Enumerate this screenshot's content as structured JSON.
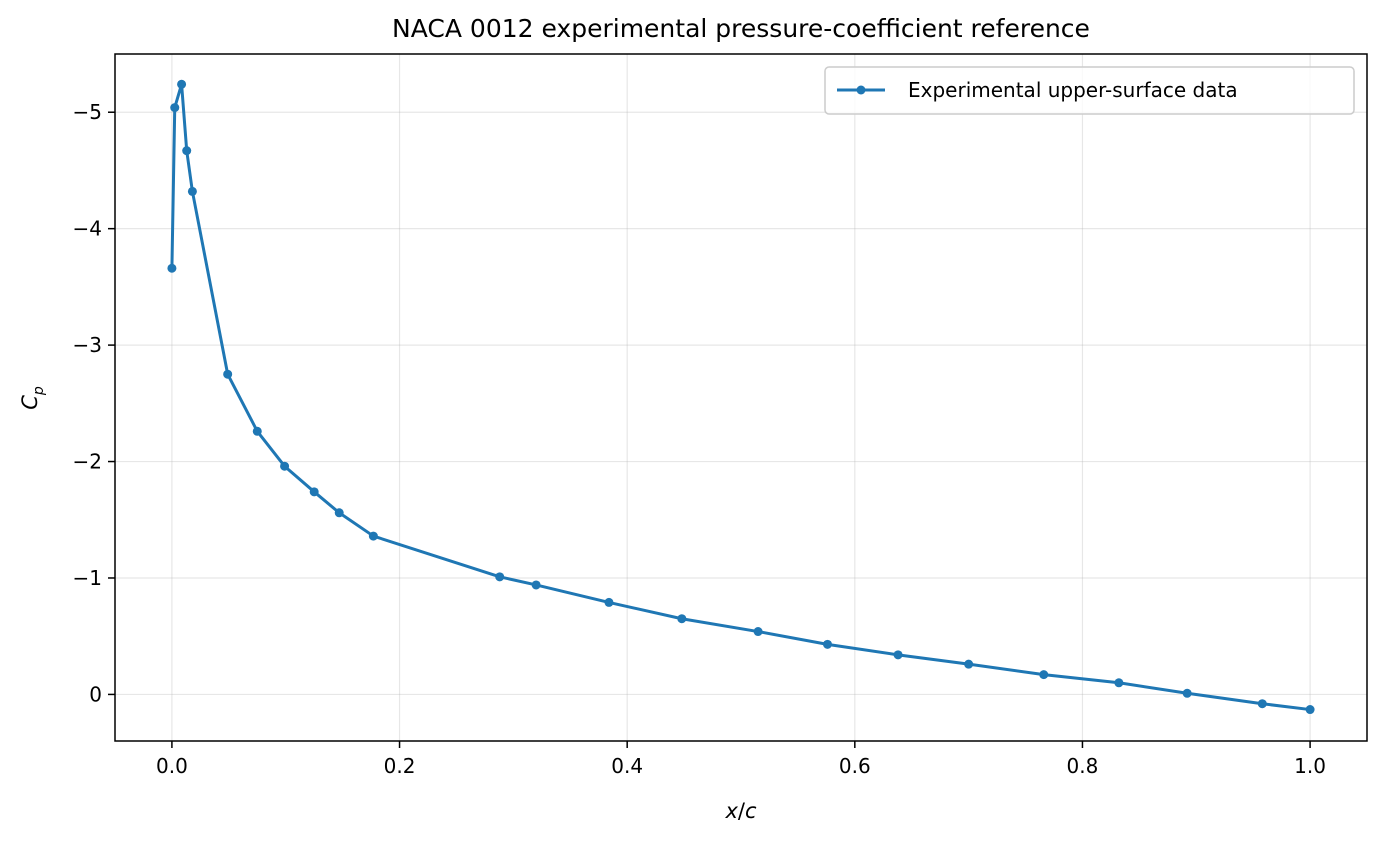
{
  "chart_data": {
    "type": "line",
    "title": "NACA 0012 experimental pressure-coefficient reference",
    "xlabel": "x/c",
    "ylabel": "C_p",
    "xlim": [
      -0.05,
      1.05
    ],
    "ylim": [
      0.4,
      -5.5
    ],
    "y_inverted": true,
    "x_ticks": [
      0.0,
      0.2,
      0.4,
      0.6,
      0.8,
      1.0
    ],
    "x_tick_labels": [
      "0.0",
      "0.2",
      "0.4",
      "0.6",
      "0.8",
      "1.0"
    ],
    "y_ticks": [
      -5,
      -4,
      -3,
      -2,
      -1,
      0
    ],
    "y_tick_labels": [
      "−5",
      "−4",
      "−3",
      "−2",
      "−1",
      "0"
    ],
    "grid": true,
    "legend_position": "top-right",
    "color": "#1f77b4",
    "series": [
      {
        "name": "Experimental upper-surface data",
        "x": [
          0.0,
          0.0025,
          0.0085,
          0.013,
          0.018,
          0.049,
          0.075,
          0.099,
          0.125,
          0.147,
          0.177,
          0.288,
          0.32,
          0.384,
          0.448,
          0.515,
          0.576,
          0.638,
          0.7,
          0.766,
          0.832,
          0.892,
          0.958,
          1.0
        ],
        "y": [
          -3.66,
          -5.04,
          -5.24,
          -4.67,
          -4.32,
          -2.75,
          -2.26,
          -1.96,
          -1.74,
          -1.56,
          -1.36,
          -1.01,
          -0.94,
          -0.79,
          -0.65,
          -0.54,
          -0.43,
          -0.34,
          -0.26,
          -0.17,
          -0.1,
          -0.01,
          0.08,
          0.13
        ]
      }
    ]
  }
}
